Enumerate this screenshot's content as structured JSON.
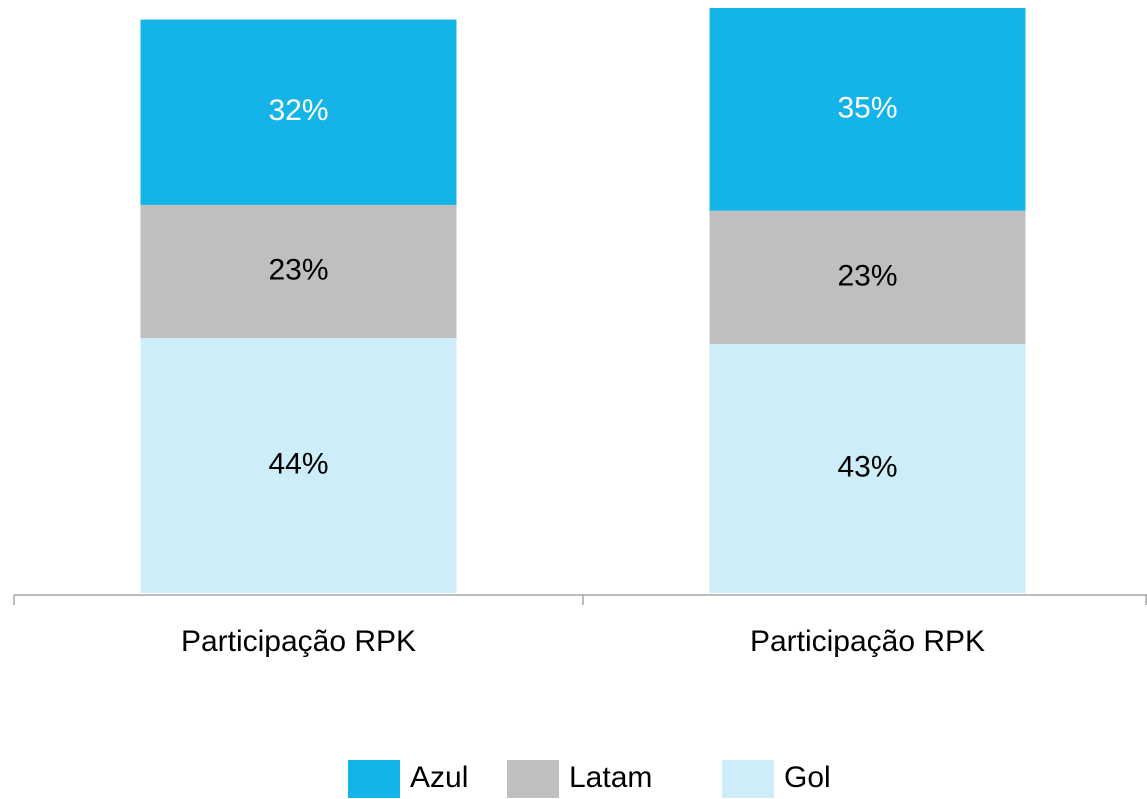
{
  "chart_data": {
    "type": "stacked_bar",
    "categories": [
      "Participação RPK",
      "Participação RPK"
    ],
    "series": [
      {
        "name": "Azul",
        "color": "#14b4e9",
        "values": [
          32,
          35
        ],
        "value_labels": [
          "32%",
          "35%"
        ]
      },
      {
        "name": "Latam",
        "color": "#bfbfbf",
        "values": [
          23,
          23
        ],
        "value_labels": [
          "23%",
          "23%"
        ]
      },
      {
        "name": "Gol",
        "color": "#cdeef9",
        "values": [
          44,
          43
        ],
        "value_labels": [
          "44%",
          "43%"
        ]
      }
    ]
  }
}
